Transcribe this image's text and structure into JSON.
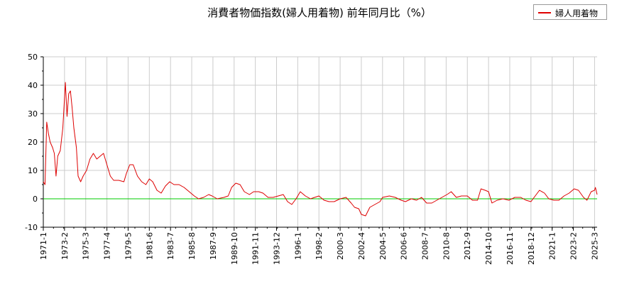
{
  "chart_data": {
    "type": "line",
    "title": "消費者物価指数(婦人用着物) 前年同月比（%）",
    "legend": {
      "label": "婦人用着物",
      "position": "top-right"
    },
    "colors": {
      "series": "#dd0000",
      "zero_line": "#00cc00",
      "grid": "#cccccc"
    },
    "ylim": [
      -10,
      50
    ],
    "yticks": [
      50,
      40,
      30,
      20,
      10,
      0,
      -10
    ],
    "xlim": [
      "1971-1",
      "2025-6"
    ],
    "xticks": [
      "1971-1",
      "1973-2",
      "1975-3",
      "1977-4",
      "1979-5",
      "1981-6",
      "1983-7",
      "1985-8",
      "1987-9",
      "1989-10",
      "1991-11",
      "1993-12",
      "1996-1",
      "1998-2",
      "2000-3",
      "2002-4",
      "2004-5",
      "2006-6",
      "2008-7",
      "2010-8",
      "2012-9",
      "2014-10",
      "2016-11",
      "2018-12",
      "2021-1",
      "2023-2",
      "2025-3"
    ],
    "grid": true,
    "series": [
      {
        "name": "婦人用着物",
        "points": [
          [
            "1971-1",
            6
          ],
          [
            "1971-3",
            5
          ],
          [
            "1971-5",
            27
          ],
          [
            "1971-7",
            23
          ],
          [
            "1971-9",
            20
          ],
          [
            "1971-12",
            18
          ],
          [
            "1972-2",
            16
          ],
          [
            "1972-4",
            8
          ],
          [
            "1972-6",
            15
          ],
          [
            "1972-9",
            17
          ],
          [
            "1972-12",
            25
          ],
          [
            "1973-3",
            41
          ],
          [
            "1973-5",
            29
          ],
          [
            "1973-7",
            37
          ],
          [
            "1973-9",
            38
          ],
          [
            "1973-11",
            32
          ],
          [
            "1974-1",
            25
          ],
          [
            "1974-4",
            18
          ],
          [
            "1974-6",
            8
          ],
          [
            "1974-9",
            6
          ],
          [
            "1974-12",
            8
          ],
          [
            "1975-4",
            10
          ],
          [
            "1975-8",
            14
          ],
          [
            "1975-12",
            16
          ],
          [
            "1976-4",
            14
          ],
          [
            "1976-8",
            15
          ],
          [
            "1976-12",
            16
          ],
          [
            "1977-4",
            12
          ],
          [
            "1977-8",
            8
          ],
          [
            "1977-12",
            6.5
          ],
          [
            "1978-6",
            6.5
          ],
          [
            "1978-12",
            6
          ],
          [
            "1979-3",
            9
          ],
          [
            "1979-7",
            12
          ],
          [
            "1979-11",
            12
          ],
          [
            "1980-4",
            8
          ],
          [
            "1980-9",
            6
          ],
          [
            "1981-2",
            5
          ],
          [
            "1981-6",
            7
          ],
          [
            "1981-10",
            6
          ],
          [
            "1982-3",
            3
          ],
          [
            "1982-8",
            2
          ],
          [
            "1983-1",
            4.5
          ],
          [
            "1983-6",
            6
          ],
          [
            "1983-11",
            5
          ],
          [
            "1984-5",
            5
          ],
          [
            "1984-11",
            4
          ],
          [
            "1985-5",
            2.5
          ],
          [
            "1985-11",
            1
          ],
          [
            "1986-4",
            0
          ],
          [
            "1986-10",
            0.5
          ],
          [
            "1987-4",
            1.5
          ],
          [
            "1987-8",
            1
          ],
          [
            "1988-2",
            0
          ],
          [
            "1988-10",
            0.5
          ],
          [
            "1989-3",
            1
          ],
          [
            "1989-7",
            4
          ],
          [
            "1989-12",
            5.5
          ],
          [
            "1990-5",
            5
          ],
          [
            "1990-10",
            2.5
          ],
          [
            "1991-4",
            1.5
          ],
          [
            "1991-9",
            2.5
          ],
          [
            "1992-3",
            2.5
          ],
          [
            "1992-8",
            2
          ],
          [
            "1993-2",
            0.5
          ],
          [
            "1993-8",
            0.5
          ],
          [
            "1994-2",
            1
          ],
          [
            "1994-8",
            1.5
          ],
          [
            "1995-1",
            -1
          ],
          [
            "1995-6",
            -2
          ],
          [
            "1995-11",
            0
          ],
          [
            "1996-4",
            2.5
          ],
          [
            "1996-10",
            1
          ],
          [
            "1997-4",
            0
          ],
          [
            "1997-9",
            0.5
          ],
          [
            "1998-2",
            1
          ],
          [
            "1998-8",
            -0.5
          ],
          [
            "1999-2",
            -1
          ],
          [
            "1999-8",
            -1
          ],
          [
            "2000-3",
            0
          ],
          [
            "2000-10",
            0.5
          ],
          [
            "2001-4",
            -1.5
          ],
          [
            "2001-8",
            -3
          ],
          [
            "2002-1",
            -3.5
          ],
          [
            "2002-4",
            -5.5
          ],
          [
            "2002-9",
            -6
          ],
          [
            "2003-2",
            -3
          ],
          [
            "2003-8",
            -2
          ],
          [
            "2004-2",
            -1
          ],
          [
            "2004-5",
            0.5
          ],
          [
            "2005-1",
            1
          ],
          [
            "2005-8",
            0.5
          ],
          [
            "2006-3",
            -0.5
          ],
          [
            "2006-8",
            -1
          ],
          [
            "2007-3",
            0
          ],
          [
            "2007-9",
            -0.5
          ],
          [
            "2008-3",
            0.5
          ],
          [
            "2008-9",
            -1.5
          ],
          [
            "2009-3",
            -1.5
          ],
          [
            "2009-9",
            -0.5
          ],
          [
            "2010-3",
            0.5
          ],
          [
            "2010-9",
            1.5
          ],
          [
            "2011-2",
            2.5
          ],
          [
            "2011-8",
            0.5
          ],
          [
            "2012-2",
            1
          ],
          [
            "2012-9",
            1
          ],
          [
            "2013-3",
            -0.5
          ],
          [
            "2013-9",
            -0.5
          ],
          [
            "2014-1",
            3.5
          ],
          [
            "2014-6",
            3
          ],
          [
            "2014-10",
            2.5
          ],
          [
            "2015-2",
            -1.5
          ],
          [
            "2015-8",
            -0.5
          ],
          [
            "2016-3",
            0
          ],
          [
            "2016-10",
            -0.5
          ],
          [
            "2017-5",
            0.5
          ],
          [
            "2017-12",
            0.5
          ],
          [
            "2018-6",
            -0.5
          ],
          [
            "2018-12",
            -1
          ],
          [
            "2019-5",
            1
          ],
          [
            "2019-10",
            3
          ],
          [
            "2020-4",
            2
          ],
          [
            "2020-9",
            0
          ],
          [
            "2021-3",
            -0.5
          ],
          [
            "2021-9",
            -0.5
          ],
          [
            "2022-3",
            1
          ],
          [
            "2022-9",
            2
          ],
          [
            "2023-3",
            3.5
          ],
          [
            "2023-8",
            3
          ],
          [
            "2024-2",
            0.5
          ],
          [
            "2024-6",
            -0.5
          ],
          [
            "2024-11",
            2.5
          ],
          [
            "2025-3",
            3
          ],
          [
            "2025-4",
            4
          ],
          [
            "2025-6",
            1.5
          ]
        ]
      }
    ]
  }
}
